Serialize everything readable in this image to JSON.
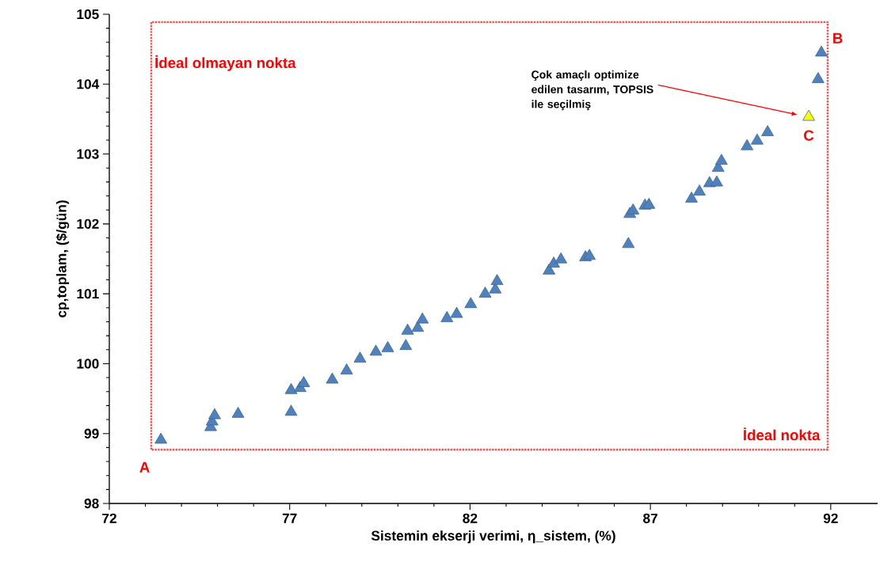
{
  "chart_data": {
    "type": "scatter",
    "xlabel": "Sistemin ekserji verimi, η_sistem, (%)",
    "ylabel": "cp,toplam, ($/gün)",
    "xlim": [
      72,
      93.3
    ],
    "ylim": [
      98,
      105
    ],
    "xticks": [
      72,
      77,
      82,
      87,
      92
    ],
    "yticks": [
      98,
      99,
      100,
      101,
      102,
      103,
      104,
      105
    ],
    "marker": "triangle",
    "series": [
      {
        "color": "#4f81bd",
        "x": [
          73.43,
          74.81,
          74.85,
          74.92,
          75.57,
          77.04,
          77.04,
          77.29,
          77.39,
          78.18,
          78.58,
          78.95,
          79.39,
          79.72,
          80.22,
          80.27,
          80.55,
          80.68,
          81.36,
          81.63,
          82.02,
          82.42,
          82.7,
          82.75,
          84.19,
          84.32,
          84.52,
          85.2,
          85.31,
          86.39,
          86.43,
          86.52,
          86.85,
          86.96,
          88.14,
          88.36,
          88.64,
          88.84,
          88.88,
          88.97,
          89.68,
          89.96,
          90.25,
          91.65,
          91.74
        ],
        "values": [
          98.91,
          99.09,
          99.17,
          99.26,
          99.28,
          99.31,
          99.62,
          99.65,
          99.72,
          99.77,
          99.9,
          100.07,
          100.17,
          100.22,
          100.25,
          100.47,
          100.51,
          100.63,
          100.65,
          100.71,
          100.85,
          101.0,
          101.06,
          101.18,
          101.33,
          101.43,
          101.49,
          101.52,
          101.54,
          101.71,
          102.14,
          102.19,
          102.26,
          102.27,
          102.36,
          102.46,
          102.58,
          102.59,
          102.8,
          102.9,
          103.11,
          103.19,
          103.31,
          104.07,
          104.45
        ]
      },
      {
        "color": "#ffff00",
        "x": [
          91.39
        ],
        "values": [
          103.53
        ]
      }
    ],
    "annotations": [
      "İdeal olmayan nokta",
      "İdeal nokta",
      "A",
      "B",
      {
        "text": "C",
        "x": 91.39,
        "y": 103.53
      },
      "Çok amaçlı optimize edilen tasarım, TOPSIS ile seçilmiş"
    ]
  }
}
